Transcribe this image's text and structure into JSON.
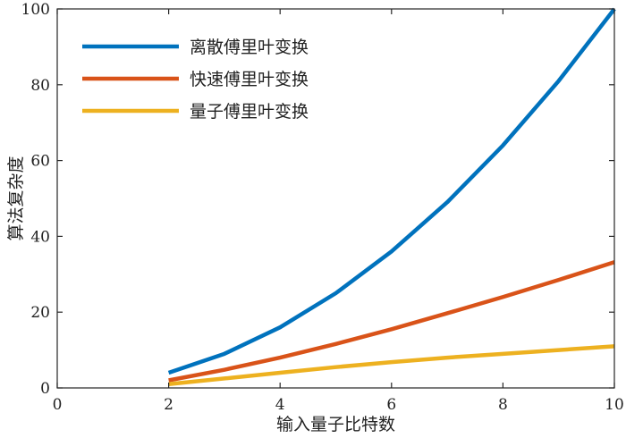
{
  "chart_data": {
    "type": "line",
    "xlabel": "输入量子比特数",
    "ylabel": "算法复杂度",
    "xlim": [
      0,
      10
    ],
    "ylim": [
      0,
      100
    ],
    "xticks": [
      0,
      2,
      4,
      6,
      8,
      10
    ],
    "yticks": [
      0,
      20,
      40,
      60,
      80,
      100
    ],
    "grid": false,
    "legend_position": "top-left",
    "series": [
      {
        "name": "离散傅里叶变换",
        "color": "#0072BD",
        "x": [
          2,
          3,
          4,
          5,
          6,
          7,
          8,
          9,
          10
        ],
        "y": [
          4,
          9,
          16,
          25,
          36,
          49,
          64,
          81,
          100
        ]
      },
      {
        "name": "快速傅里叶变换",
        "color": "#D95319",
        "x": [
          2,
          3,
          4,
          5,
          6,
          7,
          8,
          9,
          10
        ],
        "y": [
          2,
          4.8,
          8,
          11.6,
          15.5,
          19.7,
          24,
          28.5,
          33.2
        ]
      },
      {
        "name": "量子傅里叶变换",
        "color": "#EDB120",
        "x": [
          2,
          3,
          4,
          5,
          6,
          7,
          8,
          9,
          10
        ],
        "y": [
          1,
          2.5,
          4,
          5.5,
          6.8,
          8,
          9,
          10,
          11
        ]
      }
    ]
  }
}
